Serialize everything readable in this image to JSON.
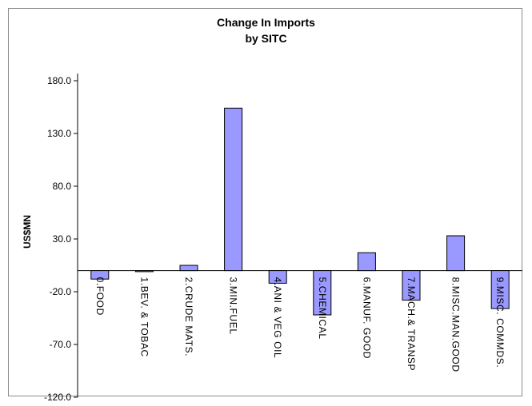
{
  "chart_data": {
    "type": "bar",
    "title": "Change In Imports",
    "subtitle": "by SITC",
    "ylabel": "US$MN",
    "xlabel": "",
    "ylim": [
      -120,
      200
    ],
    "yticks": [
      180,
      130,
      80,
      30,
      -20,
      -70,
      -120
    ],
    "ytick_labels": [
      "180.0",
      "130.0",
      "80.0",
      "30.0",
      "-20.0",
      "-70.0",
      "-120.0"
    ],
    "categories": [
      "0.FOOD",
      "1.BEV. & TOBAC",
      "2.CRUDE MATS.",
      "3.MIN.FUEL",
      "4.ANI & VEG OIL",
      "5.CHEMICAL",
      "6.MANUF. GOOD",
      "7.MACH.& TRANSP",
      "8.MISC.MAN.GOOD",
      "9.MISC. COMMDS."
    ],
    "values": [
      -8,
      -1,
      5,
      154,
      -12,
      -42,
      17,
      -28,
      33,
      -36
    ],
    "bar_color": "#9999ff",
    "grid": false,
    "legend": "none"
  }
}
